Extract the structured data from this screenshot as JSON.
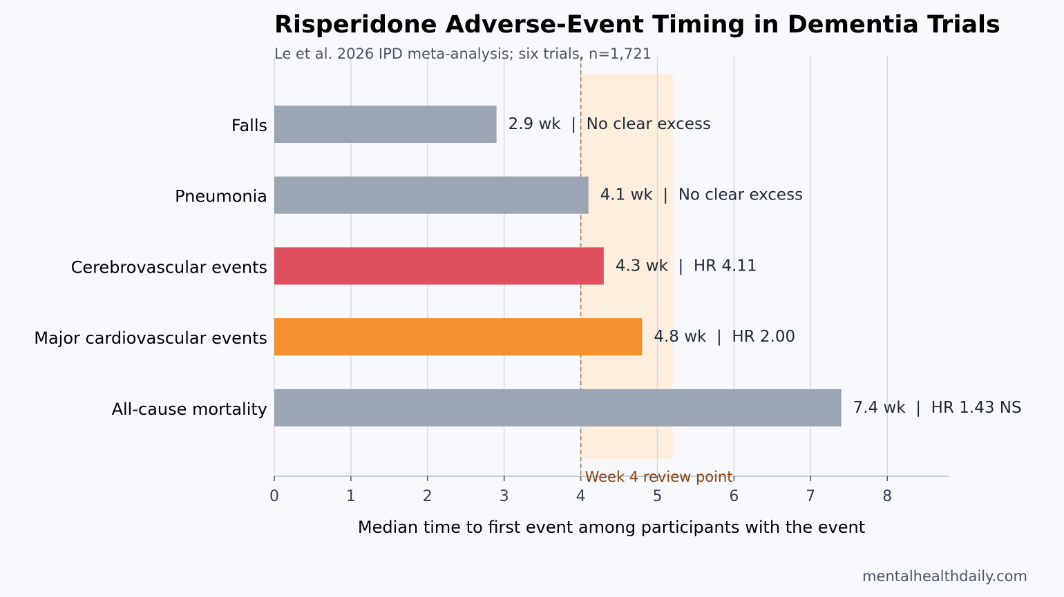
{
  "chart_data": {
    "type": "bar",
    "orientation": "horizontal",
    "title": "Risperidone Adverse-Event Timing in Dementia Trials",
    "subtitle": "Le et al. 2026 IPD meta-analysis; six trials, n=1,721",
    "xlabel": "Median time to first event among participants with the event",
    "xlim": [
      0,
      8.8
    ],
    "xticks": [
      0,
      1,
      2,
      3,
      4,
      5,
      6,
      7,
      8
    ],
    "grid": true,
    "categories": [
      "Falls",
      "Pneumonia",
      "Cerebrovascular events",
      "Major cardiovascular events",
      "All-cause mortality"
    ],
    "values": [
      2.9,
      4.1,
      4.3,
      4.8,
      7.4
    ],
    "value_labels": [
      "2.9 wk  |  No clear excess",
      "4.1 wk  |  No clear excess",
      "4.3 wk  |  HR 4.11",
      "4.8 wk  |  HR 2.00",
      "7.4 wk  |  HR 1.43 NS"
    ],
    "bar_colors": [
      "#9ca5b3",
      "#9ca5b3",
      "#e04f60",
      "#f5902e",
      "#9ca5b3"
    ],
    "reference_line": {
      "x": 4,
      "label": "Week 4 review point",
      "color": "#b5835a"
    },
    "shaded_band": {
      "x_start": 4,
      "x_end": 5.2,
      "color": "#fdeedd"
    },
    "source": "mentalhealthdaily.com"
  }
}
